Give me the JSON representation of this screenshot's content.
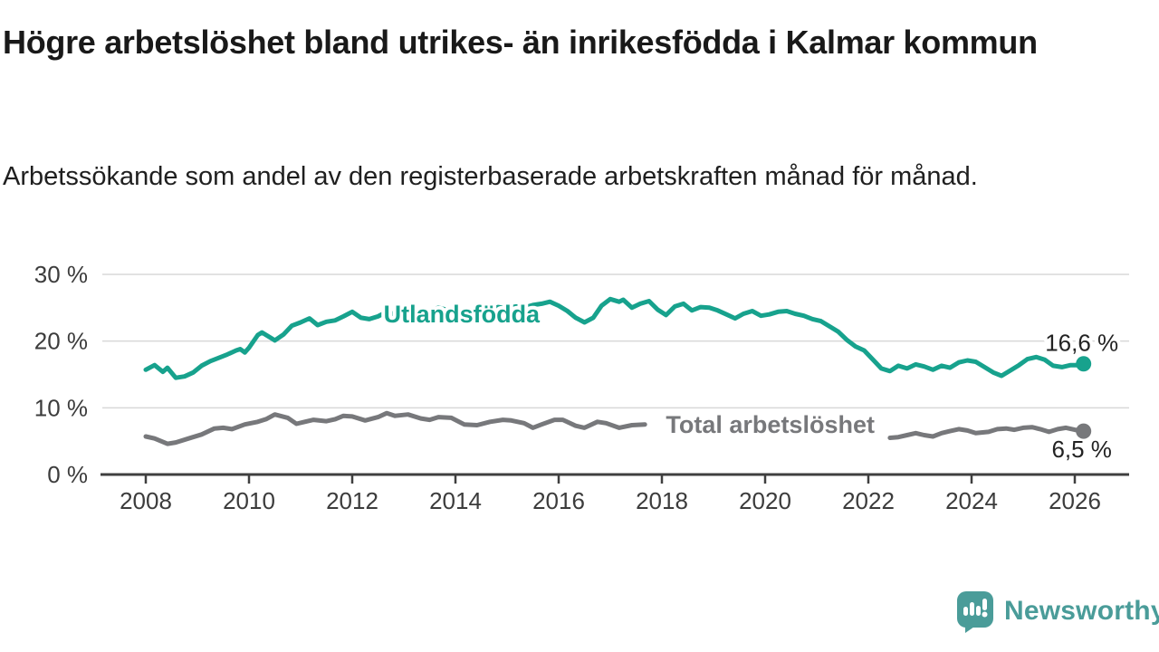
{
  "branding": {
    "logo_text": "Newsworthy",
    "logo_color": "#4a9c99",
    "logo_icon": "speech-bubble-bar-chart"
  },
  "colors": {
    "background": "#ffffff",
    "gridline": "#d9d9d9",
    "axis": "#3f3f3f",
    "title_text": "#191919",
    "annotation_text": "#232323"
  },
  "chart_data": {
    "type": "line",
    "title": "Högre arbetslöshet bland utrikes- än inrikesfödda i Kalmar kommun",
    "subtitle": "Arbetssökande som andel av den registerbaserade arbetskraften månad för månad.",
    "grid": true,
    "legend_position": "inline-labels",
    "x_axis": {
      "min": 2007.15,
      "max": 2027.05,
      "ticks": [
        2008,
        2010,
        2012,
        2014,
        2016,
        2018,
        2020,
        2022,
        2024,
        2026
      ]
    },
    "y_axis": {
      "min": 0,
      "max": 30.6,
      "ticks": [
        0,
        10,
        20,
        30
      ],
      "tick_labels": [
        "0 %",
        "10 %",
        "20 %",
        "30 %"
      ],
      "suffix": " %"
    },
    "series": [
      {
        "name": "Utlandsfödda",
        "color": "#17a28d",
        "end_value_label": "16,6 %",
        "end_value": 16.6,
        "end_label_side": "above",
        "label_anchor": {
          "x": 2014.12,
          "y": 24.0
        },
        "segments": [
          [
            [
              2008.0,
              15.7
            ],
            [
              2008.17,
              16.4
            ],
            [
              2008.33,
              15.4
            ],
            [
              2008.42,
              16.0
            ],
            [
              2008.58,
              14.5
            ],
            [
              2008.75,
              14.7
            ],
            [
              2008.92,
              15.3
            ],
            [
              2009.08,
              16.3
            ],
            [
              2009.25,
              17.0
            ],
            [
              2009.42,
              17.5
            ],
            [
              2009.58,
              18.0
            ],
            [
              2009.75,
              18.6
            ],
            [
              2009.83,
              18.8
            ],
            [
              2009.92,
              18.3
            ],
            [
              2010.0,
              19.0
            ],
            [
              2010.17,
              20.9
            ],
            [
              2010.25,
              21.3
            ],
            [
              2010.42,
              20.5
            ],
            [
              2010.5,
              20.1
            ],
            [
              2010.67,
              21.0
            ],
            [
              2010.83,
              22.3
            ],
            [
              2011.0,
              22.8
            ],
            [
              2011.17,
              23.4
            ],
            [
              2011.33,
              22.4
            ],
            [
              2011.5,
              22.9
            ],
            [
              2011.67,
              23.1
            ],
            [
              2011.83,
              23.7
            ],
            [
              2012.0,
              24.4
            ],
            [
              2012.17,
              23.5
            ],
            [
              2012.33,
              23.3
            ],
            [
              2012.5,
              23.7
            ],
            [
              2012.67,
              24.4
            ],
            [
              2012.83,
              24.0
            ],
            [
              2013.0,
              24.7
            ],
            [
              2013.17,
              24.3
            ],
            [
              2013.33,
              24.8
            ],
            [
              2013.5,
              24.5
            ],
            [
              2013.67,
              25.0
            ],
            [
              2013.83,
              24.7
            ],
            [
              2014.0,
              24.5
            ],
            [
              2014.17,
              24.2
            ],
            [
              2014.33,
              24.6
            ],
            [
              2014.5,
              25.0
            ],
            [
              2014.67,
              24.8
            ],
            [
              2014.83,
              25.1
            ],
            [
              2015.0,
              24.9
            ],
            [
              2015.17,
              25.2
            ],
            [
              2015.33,
              25.0
            ],
            [
              2015.5,
              25.4
            ],
            [
              2015.67,
              25.6
            ],
            [
              2015.83,
              25.9
            ],
            [
              2016.0,
              25.3
            ],
            [
              2016.17,
              24.5
            ],
            [
              2016.33,
              23.5
            ],
            [
              2016.5,
              22.8
            ],
            [
              2016.67,
              23.5
            ],
            [
              2016.83,
              25.3
            ],
            [
              2017.0,
              26.3
            ],
            [
              2017.17,
              25.9
            ],
            [
              2017.25,
              26.2
            ],
            [
              2017.42,
              25.0
            ],
            [
              2017.58,
              25.6
            ],
            [
              2017.75,
              26.0
            ],
            [
              2017.92,
              24.7
            ],
            [
              2018.08,
              23.9
            ],
            [
              2018.25,
              25.2
            ],
            [
              2018.42,
              25.6
            ],
            [
              2018.58,
              24.6
            ],
            [
              2018.75,
              25.1
            ],
            [
              2018.92,
              25.0
            ],
            [
              2019.08,
              24.6
            ],
            [
              2019.25,
              24.0
            ],
            [
              2019.42,
              23.4
            ],
            [
              2019.58,
              24.1
            ],
            [
              2019.75,
              24.5
            ],
            [
              2019.92,
              23.8
            ],
            [
              2020.08,
              24.0
            ],
            [
              2020.25,
              24.4
            ],
            [
              2020.42,
              24.5
            ],
            [
              2020.58,
              24.1
            ],
            [
              2020.75,
              23.8
            ],
            [
              2020.92,
              23.3
            ],
            [
              2021.08,
              23.0
            ],
            [
              2021.25,
              22.2
            ],
            [
              2021.42,
              21.4
            ],
            [
              2021.58,
              20.2
            ],
            [
              2021.75,
              19.2
            ],
            [
              2021.92,
              18.6
            ],
            [
              2022.08,
              17.3
            ],
            [
              2022.25,
              15.9
            ],
            [
              2022.42,
              15.5
            ],
            [
              2022.58,
              16.3
            ],
            [
              2022.75,
              15.9
            ],
            [
              2022.92,
              16.5
            ],
            [
              2023.08,
              16.2
            ],
            [
              2023.25,
              15.7
            ],
            [
              2023.42,
              16.3
            ],
            [
              2023.58,
              16.0
            ],
            [
              2023.75,
              16.8
            ],
            [
              2023.92,
              17.1
            ],
            [
              2024.08,
              16.9
            ],
            [
              2024.25,
              16.1
            ],
            [
              2024.42,
              15.3
            ],
            [
              2024.58,
              14.8
            ],
            [
              2024.75,
              15.6
            ],
            [
              2024.92,
              16.4
            ],
            [
              2025.08,
              17.3
            ],
            [
              2025.25,
              17.6
            ],
            [
              2025.42,
              17.2
            ],
            [
              2025.58,
              16.3
            ],
            [
              2025.75,
              16.1
            ],
            [
              2025.92,
              16.4
            ],
            [
              2026.08,
              16.4
            ],
            [
              2026.17,
              16.6
            ]
          ]
        ]
      },
      {
        "name": "Total arbetslöshet",
        "color": "#77787b",
        "end_value_label": "6,5 %",
        "end_value": 6.5,
        "end_label_side": "below",
        "label_anchor": {
          "x": 2020.1,
          "y": 7.45
        },
        "segments": [
          [
            [
              2008.0,
              5.7
            ],
            [
              2008.17,
              5.4
            ],
            [
              2008.42,
              4.6
            ],
            [
              2008.58,
              4.8
            ],
            [
              2008.83,
              5.4
            ],
            [
              2009.08,
              6.0
            ],
            [
              2009.33,
              6.9
            ],
            [
              2009.5,
              7.0
            ],
            [
              2009.67,
              6.8
            ],
            [
              2009.92,
              7.5
            ],
            [
              2010.17,
              7.9
            ],
            [
              2010.33,
              8.3
            ],
            [
              2010.5,
              9.0
            ],
            [
              2010.75,
              8.5
            ],
            [
              2010.92,
              7.6
            ],
            [
              2011.08,
              7.9
            ],
            [
              2011.25,
              8.2
            ],
            [
              2011.5,
              8.0
            ],
            [
              2011.67,
              8.3
            ],
            [
              2011.83,
              8.8
            ],
            [
              2012.0,
              8.7
            ],
            [
              2012.25,
              8.1
            ],
            [
              2012.5,
              8.6
            ],
            [
              2012.67,
              9.2
            ],
            [
              2012.83,
              8.8
            ],
            [
              2013.08,
              9.0
            ],
            [
              2013.33,
              8.4
            ],
            [
              2013.5,
              8.2
            ],
            [
              2013.67,
              8.6
            ],
            [
              2013.92,
              8.5
            ],
            [
              2014.17,
              7.5
            ],
            [
              2014.42,
              7.4
            ],
            [
              2014.67,
              7.9
            ],
            [
              2014.92,
              8.2
            ],
            [
              2015.08,
              8.1
            ],
            [
              2015.33,
              7.7
            ],
            [
              2015.5,
              7.0
            ],
            [
              2015.67,
              7.5
            ],
            [
              2015.92,
              8.2
            ],
            [
              2016.08,
              8.2
            ],
            [
              2016.33,
              7.3
            ],
            [
              2016.5,
              7.0
            ],
            [
              2016.75,
              7.9
            ],
            [
              2016.92,
              7.7
            ],
            [
              2017.17,
              7.0
            ],
            [
              2017.42,
              7.4
            ],
            [
              2017.67,
              7.5
            ]
          ],
          [
            [
              2022.42,
              5.5
            ],
            [
              2022.58,
              5.6
            ],
            [
              2022.75,
              5.9
            ],
            [
              2022.92,
              6.2
            ],
            [
              2023.08,
              5.9
            ],
            [
              2023.25,
              5.7
            ],
            [
              2023.42,
              6.2
            ],
            [
              2023.58,
              6.5
            ],
            [
              2023.75,
              6.8
            ],
            [
              2023.92,
              6.6
            ],
            [
              2024.08,
              6.2
            ],
            [
              2024.33,
              6.4
            ],
            [
              2024.5,
              6.8
            ],
            [
              2024.67,
              6.9
            ],
            [
              2024.83,
              6.7
            ],
            [
              2025.0,
              7.0
            ],
            [
              2025.17,
              7.1
            ],
            [
              2025.33,
              6.8
            ],
            [
              2025.5,
              6.4
            ],
            [
              2025.67,
              6.8
            ],
            [
              2025.83,
              7.0
            ],
            [
              2026.0,
              6.7
            ],
            [
              2026.17,
              6.5
            ]
          ]
        ]
      }
    ]
  }
}
